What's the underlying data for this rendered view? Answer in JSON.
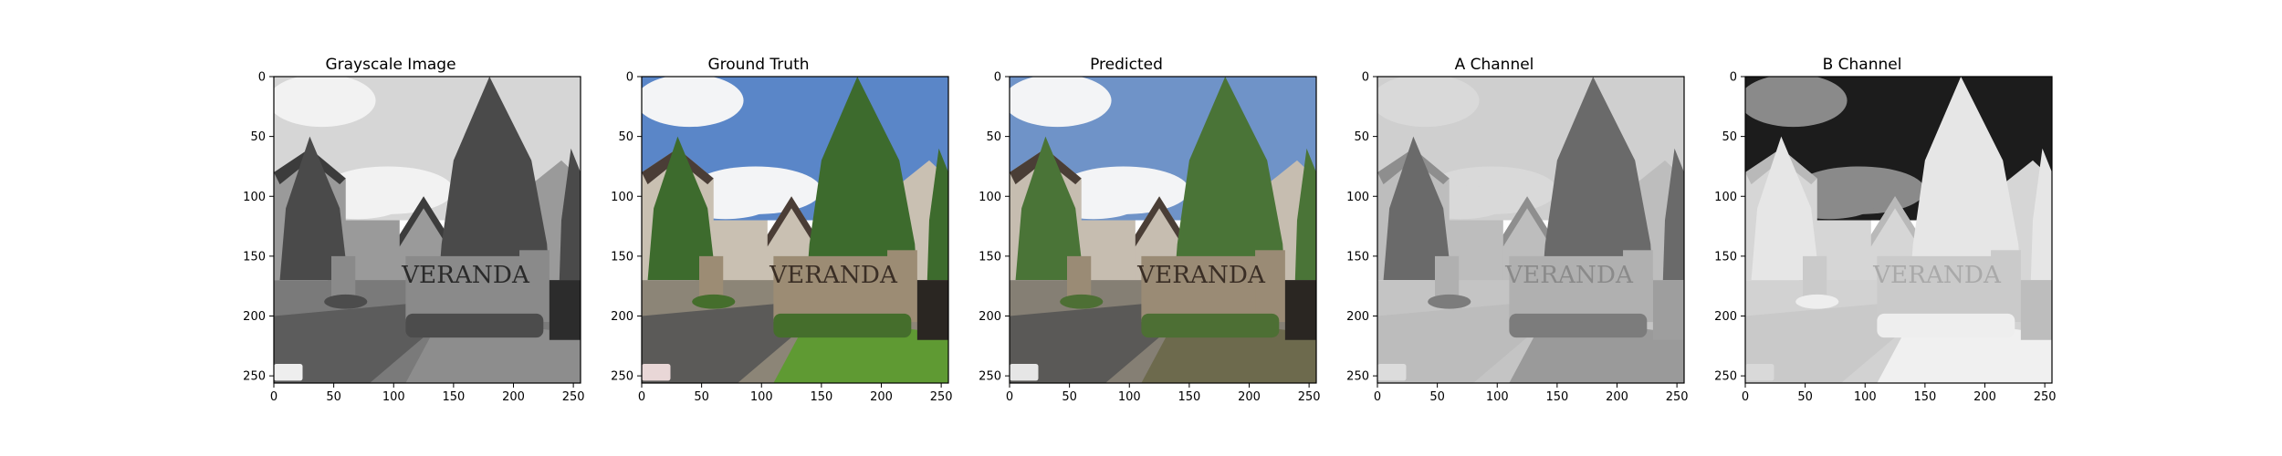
{
  "panels": [
    {
      "title": "Grayscale Image",
      "image": "grayscale-photo"
    },
    {
      "title": "Ground Truth",
      "image": "color-photo"
    },
    {
      "title": "Predicted",
      "image": "predicted-color-photo"
    },
    {
      "title": "A Channel",
      "image": "a-channel-map"
    },
    {
      "title": "B Channel",
      "image": "b-channel-map"
    }
  ],
  "axes": {
    "x_ticks": [
      "0",
      "50",
      "100",
      "150",
      "200",
      "250"
    ],
    "y_ticks": [
      "0",
      "50",
      "100",
      "150",
      "200",
      "250"
    ],
    "x_tick_values": [
      0,
      50,
      100,
      150,
      200,
      250
    ],
    "y_tick_values": [
      0,
      50,
      100,
      150,
      200,
      250
    ],
    "xlim": [
      0,
      256
    ],
    "ylim": [
      256,
      0
    ]
  },
  "photo_text": {
    "sign": "VERANDA"
  }
}
